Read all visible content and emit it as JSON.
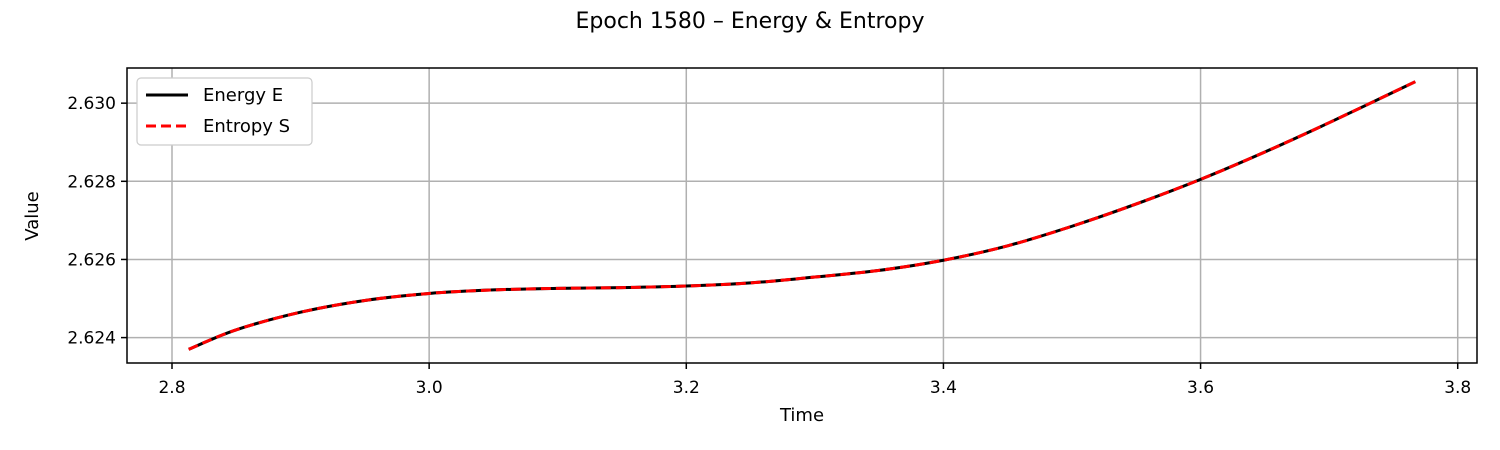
{
  "chart_data": {
    "type": "line",
    "title": "Epoch 1580 – Energy & Entropy",
    "xlabel": "Time",
    "ylabel": "Value",
    "xlim": [
      2.765,
      3.815
    ],
    "ylim": [
      2.62335,
      2.6309
    ],
    "xticks": [
      2.8,
      3.0,
      3.2,
      3.4,
      3.6,
      3.8
    ],
    "xtick_labels": [
      "2.8",
      "3.0",
      "3.2",
      "3.4",
      "3.6",
      "3.8"
    ],
    "yticks": [
      2.624,
      2.626,
      2.628,
      2.63
    ],
    "ytick_labels": [
      "2.624",
      "2.626",
      "2.628",
      "2.630"
    ],
    "grid": true,
    "legend": "top-left",
    "series": [
      {
        "name": "Energy E",
        "color": "#000000",
        "style": "solid",
        "x": [
          2.813,
          2.85,
          2.9,
          2.95,
          3.0,
          3.05,
          3.1,
          3.15,
          3.2,
          3.25,
          3.3,
          3.35,
          3.4,
          3.45,
          3.5,
          3.55,
          3.6,
          3.65,
          3.7,
          3.767
        ],
        "y": [
          2.6237,
          2.6242,
          2.62465,
          2.62495,
          2.62513,
          2.62522,
          2.62526,
          2.62528,
          2.62532,
          2.6254,
          2.62555,
          2.62572,
          2.62598,
          2.62635,
          2.62685,
          2.62742,
          2.62805,
          2.62875,
          2.6295,
          2.63055
        ]
      },
      {
        "name": "Entropy S",
        "color": "#ff0000",
        "style": "dashed",
        "x": [
          2.813,
          2.85,
          2.9,
          2.95,
          3.0,
          3.05,
          3.1,
          3.15,
          3.2,
          3.25,
          3.3,
          3.35,
          3.4,
          3.45,
          3.5,
          3.55,
          3.6,
          3.65,
          3.7,
          3.767
        ],
        "y": [
          2.6237,
          2.6242,
          2.62465,
          2.62495,
          2.62513,
          2.62522,
          2.62526,
          2.62528,
          2.62532,
          2.6254,
          2.62555,
          2.62572,
          2.62598,
          2.62635,
          2.62685,
          2.62742,
          2.62805,
          2.62875,
          2.6295,
          2.63055
        ]
      }
    ]
  }
}
